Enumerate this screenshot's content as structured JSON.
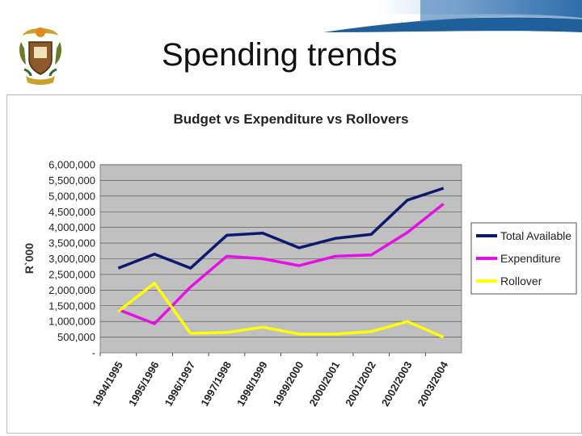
{
  "slide": {
    "title": "Spending trends"
  },
  "colors": {
    "banner": "#1f5f9b",
    "plot_bg": "#c0c0c0",
    "total": "#0b1a6e",
    "expenditure": "#e510e5",
    "rollover": "#ffff00"
  },
  "icons": {
    "crest": "coat-of-arms-icon"
  },
  "chart_data": {
    "type": "line",
    "title": "Budget vs Expenditure vs Rollovers",
    "ylabel": "R`000",
    "xlabel": "",
    "ylim": [
      0,
      6000000
    ],
    "yticks": [
      "-",
      "500,000",
      "1,000,000",
      "1,500,000",
      "2,000,000",
      "2,500,000",
      "3,000,000",
      "3,500,000",
      "4,000,000",
      "4,500,000",
      "5,000,000",
      "5,500,000",
      "6,000,000"
    ],
    "categories": [
      "1994/1995",
      "1995/1996",
      "1996/1997",
      "1997/1998",
      "1998/1999",
      "1999/2000",
      "2000/2001",
      "2001/2002",
      "2002/2003",
      "2003/2004"
    ],
    "grid": true,
    "legend": "right",
    "series": [
      {
        "name": "Total Available",
        "color": "#0b1a6e",
        "values": [
          2700000,
          3150000,
          2700000,
          3750000,
          3820000,
          3350000,
          3650000,
          3780000,
          4870000,
          5250000
        ]
      },
      {
        "name": "Expenditure",
        "color": "#e510e5",
        "values": [
          1380000,
          930000,
          2100000,
          3080000,
          3000000,
          2780000,
          3080000,
          3120000,
          3840000,
          4750000
        ]
      },
      {
        "name": "Rollover",
        "color": "#ffff00",
        "values": [
          1320000,
          2220000,
          620000,
          650000,
          820000,
          600000,
          600000,
          680000,
          1000000,
          500000
        ]
      }
    ]
  }
}
